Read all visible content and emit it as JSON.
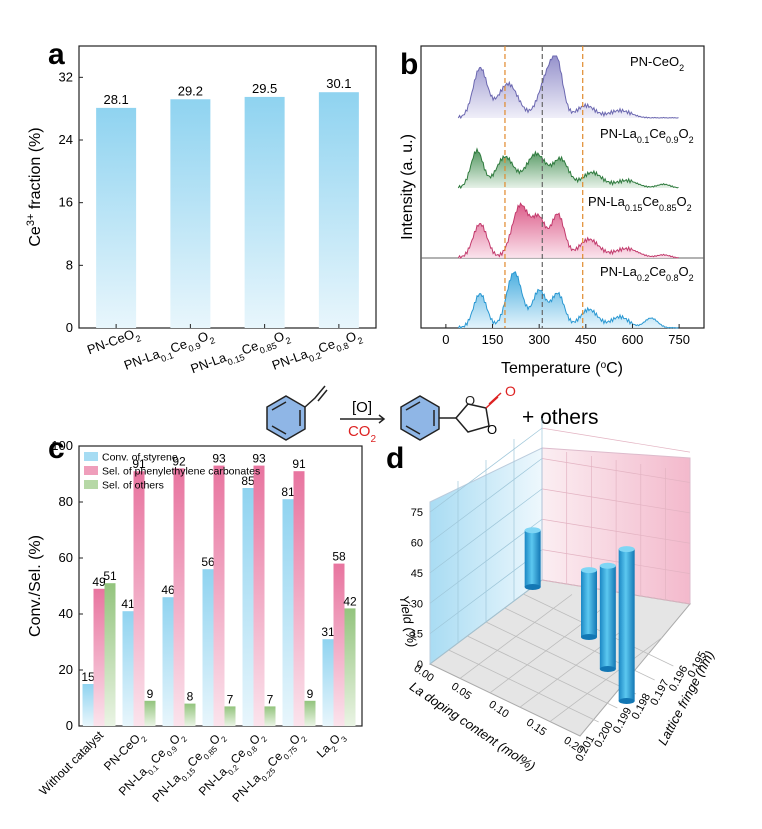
{
  "colors": {
    "blue": "#5bbde6",
    "pink": "#e8749f",
    "green": "#93c47d",
    "purple": "#8a86c6",
    "darkgreen": "#3d8a4c",
    "magenta": "#d84b7d"
  },
  "chart_data": [
    {
      "panel": "a",
      "type": "bar",
      "categories": [
        "PN-CeO2",
        "PN-La0.1Ce0.9O2",
        "PN-La0.15Ce0.85O2",
        "PN-La0.2Ce0.8O2"
      ],
      "values": [
        28.1,
        29.2,
        29.5,
        30.1
      ],
      "value_labels": [
        "28.1",
        "29.2",
        "29.5",
        "30.1"
      ],
      "ylabel": "Ce3+ fraction (%)",
      "ylim": [
        0,
        36
      ],
      "yticks": [
        "0",
        "8",
        "16",
        "24",
        "32"
      ]
    },
    {
      "panel": "b",
      "type": "area",
      "xlabel": "Temperature (oC)",
      "ylabel": "Intensity (a. u.)",
      "xlim": [
        -80,
        830
      ],
      "xticks": [
        "0",
        "150",
        "300",
        "450",
        "600",
        "750"
      ],
      "reference_lines": [
        190,
        310,
        440
      ],
      "series": [
        {
          "name": "PN-CeO2",
          "peaks": [
            [
              110,
              0.8,
              32
            ],
            [
              200,
              0.55,
              45
            ],
            [
              330,
              0.72,
              40
            ],
            [
              360,
              0.55,
              25
            ],
            [
              450,
              0.2,
              40
            ],
            [
              560,
              0.12,
              50
            ]
          ]
        },
        {
          "name": "PN-La0.1Ce0.9O2",
          "peaks": [
            [
              100,
              0.6,
              28
            ],
            [
              190,
              0.5,
              40
            ],
            [
              290,
              0.55,
              45
            ],
            [
              370,
              0.45,
              35
            ],
            [
              470,
              0.25,
              45
            ],
            [
              580,
              0.12,
              50
            ],
            [
              700,
              0.06,
              30
            ]
          ]
        },
        {
          "name": "PN-La0.15Ce0.85O2",
          "peaks": [
            [
              110,
              0.55,
              32
            ],
            [
              240,
              0.85,
              38
            ],
            [
              300,
              0.6,
              30
            ],
            [
              360,
              0.7,
              30
            ],
            [
              460,
              0.3,
              45
            ],
            [
              580,
              0.15,
              55
            ],
            [
              700,
              0.05,
              30
            ]
          ]
        },
        {
          "name": "PN-La0.2Ce0.8O2",
          "peaks": [
            [
              110,
              0.55,
              30
            ],
            [
              220,
              0.9,
              35
            ],
            [
              300,
              0.6,
              30
            ],
            [
              360,
              0.55,
              30
            ],
            [
              460,
              0.3,
              40
            ],
            [
              560,
              0.18,
              40
            ],
            [
              660,
              0.16,
              30
            ]
          ]
        }
      ]
    },
    {
      "panel": "c",
      "type": "bar",
      "categories": [
        "Without catalyst",
        "PN-CeO2",
        "PN-La0.1Ce0.9O2",
        "PN-La0.15Ce0.85O2",
        "PN-La0.2Ce0.8O2",
        "PN-La0.25Ce0.75O2",
        "La2O3"
      ],
      "series": [
        {
          "name": "Conv. of styrene",
          "values": [
            15,
            41,
            46,
            56,
            85,
            81,
            31
          ]
        },
        {
          "name": "Sel. of phenylethylene carbonates",
          "values": [
            49,
            91,
            92,
            93,
            93,
            91,
            58
          ]
        },
        {
          "name": "Sel. of others",
          "values": [
            51,
            9,
            8,
            7,
            7,
            9,
            42
          ]
        }
      ],
      "ylabel": "Conv./Sel. (%)",
      "ylim": [
        0,
        100
      ],
      "yticks": [
        "0",
        "20",
        "40",
        "60",
        "80",
        "100"
      ]
    },
    {
      "panel": "d",
      "type": "bar3d",
      "points": [
        {
          "la_doping": 0.0,
          "lattice_fringe": 0.1955,
          "yield": 28
        },
        {
          "la_doping": 0.1,
          "lattice_fringe": 0.1965,
          "yield": 33
        },
        {
          "la_doping": 0.15,
          "lattice_fringe": 0.1975,
          "yield": 51
        },
        {
          "la_doping": 0.2,
          "lattice_fringe": 0.1985,
          "yield": 75
        }
      ],
      "zlabel": "Yield (%)",
      "xlabel": "La doping content (mol%)",
      "ylabel": "Lattice fringe (nm)",
      "zticks": [
        "0",
        "15",
        "30",
        "45",
        "60",
        "75"
      ],
      "xticks": [
        "0.00",
        "0.05",
        "0.10",
        "0.15",
        "0.20"
      ],
      "yticks": [
        "0.195",
        "0.196",
        "0.197",
        "0.198",
        "0.199",
        "0.200",
        "0.201"
      ]
    }
  ],
  "panel_labels": {
    "a": "a",
    "b": "b",
    "c": "c",
    "d": "d"
  },
  "scheme": {
    "reagent": "[O]",
    "co2": "CO2",
    "others": "+ others",
    "o_top": "O",
    "o_ring1": "O",
    "o_ring2": "O"
  }
}
